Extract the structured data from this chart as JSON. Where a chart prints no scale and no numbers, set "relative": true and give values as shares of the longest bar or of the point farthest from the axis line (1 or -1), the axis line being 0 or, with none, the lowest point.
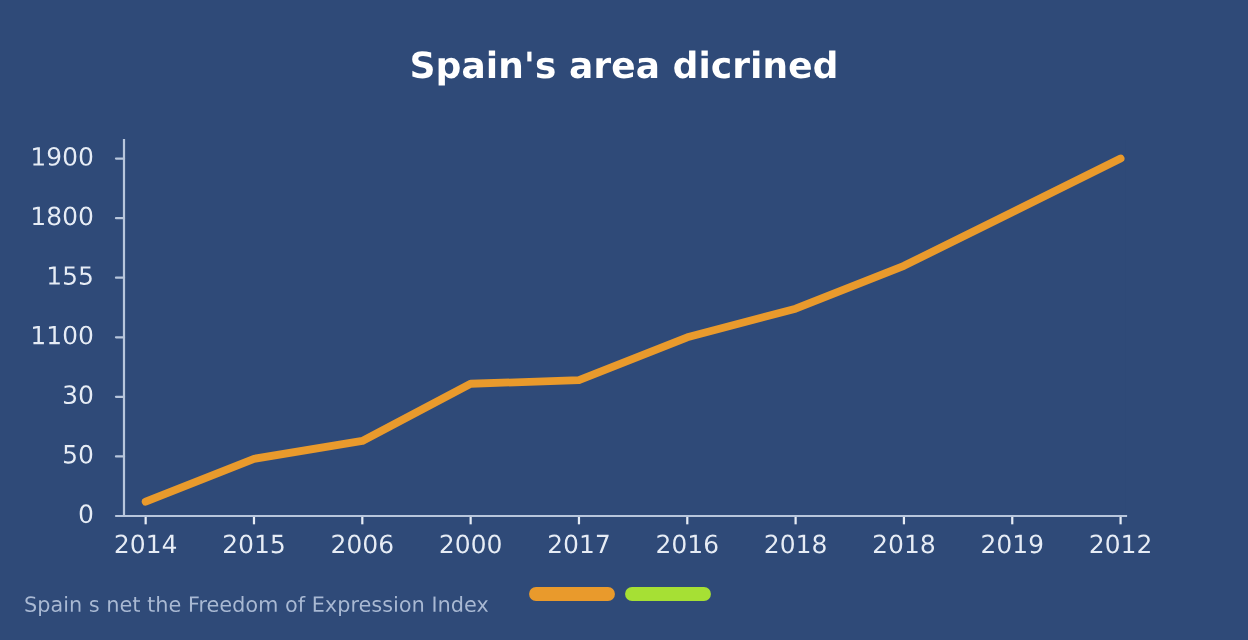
{
  "chart_data": {
    "type": "line",
    "title": "Spain's area dicrined",
    "relative": true,
    "categories": [
      "2014",
      "2015",
      "2006",
      "2000",
      "2017",
      "2016",
      "2018",
      "2018",
      "2019",
      "2012"
    ],
    "series": [
      {
        "color": "#e99a2c",
        "values": [
          0.04,
          0.16,
          0.21,
          0.37,
          0.38,
          0.5,
          0.58,
          0.7,
          0.85,
          1.0
        ]
      }
    ],
    "marker": "none",
    "line_style": "solid",
    "annotations": [
      "Spain s net the Freedom of Expression Index",
      "0",
      "50",
      "30",
      "1100",
      "155",
      "1800",
      "1900"
    ]
  }
}
